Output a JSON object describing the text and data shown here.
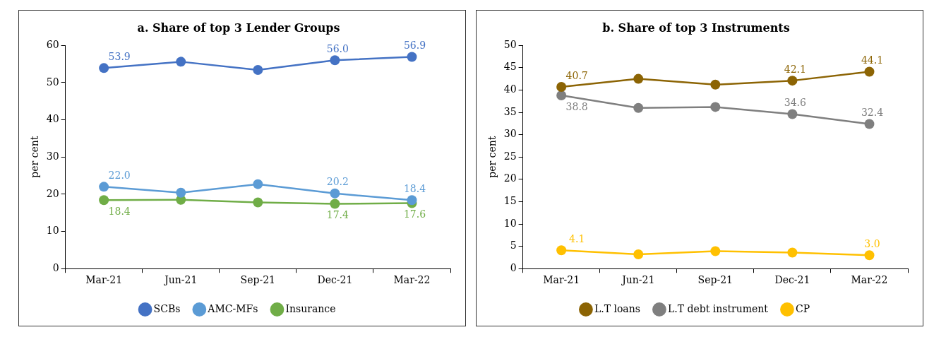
{
  "chart_data": [
    {
      "type": "line",
      "title": "a. Share of top 3 Lender Groups",
      "ylabel": "per cent",
      "categories": [
        "Mar-21",
        "Jun-21",
        "Sep-21",
        "Dec-21",
        "Mar-22"
      ],
      "ylim": [
        0,
        60
      ],
      "yticks": [
        0,
        10,
        20,
        30,
        40,
        50,
        60
      ],
      "grid": false,
      "legend": "bottom",
      "marker": "circle",
      "line_style": "solid",
      "series": [
        {
          "name": "SCBs",
          "color": "#4472c4",
          "values": [
            53.9,
            55.6,
            53.4,
            56.0,
            56.9
          ],
          "value_labels": [
            "53.9",
            null,
            null,
            "56.0",
            "56.9"
          ]
        },
        {
          "name": "AMC-MFs",
          "color": "#5b9bd5",
          "values": [
            22.0,
            20.4,
            22.7,
            20.2,
            18.4
          ],
          "value_labels": [
            "22.0",
            null,
            null,
            "20.2",
            "18.4"
          ]
        },
        {
          "name": "Insurance",
          "color": "#70ad47",
          "values": [
            18.4,
            18.5,
            17.8,
            17.4,
            17.6
          ],
          "value_labels": [
            "18.4",
            null,
            null,
            "17.4",
            "17.6"
          ]
        }
      ]
    },
    {
      "type": "line",
      "title": "b. Share of top 3 Instruments",
      "ylabel": "per cent",
      "categories": [
        "Mar-21",
        "Jun-21",
        "Sep-21",
        "Dec-21",
        "Mar-22"
      ],
      "ylim": [
        0,
        50
      ],
      "yticks": [
        0,
        5,
        10,
        15,
        20,
        25,
        30,
        35,
        40,
        45,
        50
      ],
      "grid": false,
      "legend": "bottom",
      "marker": "circle",
      "line_style": "solid",
      "series": [
        {
          "name": "L.T loans",
          "color": "#8c6404",
          "values": [
            40.7,
            42.5,
            41.2,
            42.1,
            44.1
          ],
          "value_labels": [
            "40.7",
            null,
            null,
            "42.1",
            "44.1"
          ]
        },
        {
          "name": "L.T debt instrument",
          "color": "#7f7f7f",
          "values": [
            38.8,
            36.0,
            36.2,
            34.6,
            32.4
          ],
          "value_labels": [
            "38.8",
            null,
            null,
            "34.6",
            "32.4"
          ]
        },
        {
          "name": "CP",
          "color": "#ffc000",
          "values": [
            4.1,
            3.2,
            3.9,
            3.6,
            3.0
          ],
          "value_labels": [
            "4.1",
            null,
            null,
            null,
            "3.0"
          ]
        }
      ]
    }
  ]
}
